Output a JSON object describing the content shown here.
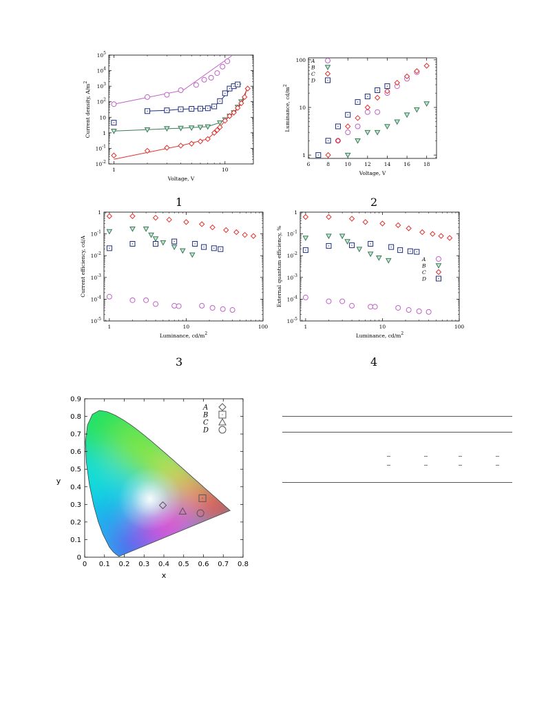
{
  "panel_numbers": [
    "1",
    "2",
    "3",
    "4"
  ],
  "chart_data": [
    {
      "id": "jv",
      "type": "scatter",
      "xlabel": "Voltage, V",
      "ylabel": "Current density, A/m",
      "ylabel_sup": "2",
      "xscale": "log",
      "yscale": "log",
      "xlim": [
        0.9,
        18
      ],
      "ylim": [
        0.01,
        100000
      ],
      "x_ticks": [
        {
          "v": 1,
          "label": "1"
        },
        {
          "v": 10,
          "label": "10"
        }
      ],
      "y_ticks": [
        {
          "v": 0.01,
          "base": "10",
          "exp": "-2"
        },
        {
          "v": 0.1,
          "base": "10",
          "exp": "-1"
        },
        {
          "v": 1,
          "base": "1",
          "exp": ""
        },
        {
          "v": 10,
          "base": "10",
          "exp": ""
        },
        {
          "v": 100,
          "base": "10",
          "exp": "2"
        },
        {
          "v": 1000,
          "base": "10",
          "exp": "3"
        },
        {
          "v": 10000,
          "base": "10",
          "exp": "4"
        },
        {
          "v": 100000,
          "base": "10",
          "exp": "5"
        }
      ],
      "series": [
        {
          "name": "A",
          "marker": "circle",
          "color": "#c060c8",
          "x": [
            1,
            2,
            3,
            4,
            5.5,
            6.5,
            7.5,
            8.5,
            9.5,
            10.5
          ],
          "y": [
            70,
            200,
            280,
            550,
            1200,
            2600,
            3500,
            7000,
            18000,
            40000
          ],
          "fit_x": [
            1,
            4.2,
            11.5
          ],
          "fit_y": [
            70,
            550,
            90000
          ]
        },
        {
          "name": "D",
          "marker": "square",
          "color": "#1c2a7c",
          "x": [
            1,
            2,
            3,
            4,
            5,
            6,
            7,
            8,
            9,
            10,
            11,
            12,
            13
          ],
          "y": [
            4.5,
            25,
            28,
            33,
            35,
            36,
            38,
            50,
            110,
            350,
            700,
            1000,
            1300
          ],
          "fit_x": [
            2,
            3,
            4,
            5,
            6,
            7,
            8,
            9,
            10,
            11,
            12,
            13,
            14
          ],
          "fit_y": [
            25,
            28,
            33,
            35,
            36,
            38,
            50,
            110,
            250,
            600,
            900,
            1200,
            1400
          ]
        },
        {
          "name": "B",
          "marker": "tri-down",
          "color": "#3a7a58",
          "x": [
            1,
            2,
            3,
            4,
            5,
            6,
            7,
            9,
            10,
            11,
            12,
            13,
            14
          ],
          "y": [
            1.3,
            1.6,
            1.9,
            2,
            2.1,
            2.3,
            2.5,
            4.5,
            7,
            12,
            20,
            45,
            100
          ],
          "fit_x": [
            1,
            2,
            4,
            7,
            8,
            9,
            10,
            11,
            12,
            13,
            14,
            16
          ],
          "fit_y": [
            1.3,
            1.6,
            2,
            2.5,
            3.5,
            4.5,
            7,
            12,
            20,
            45,
            100,
            800
          ]
        },
        {
          "name": "C",
          "marker": "diamond",
          "color": "#e0302c",
          "x": [
            1,
            2,
            3,
            4,
            5,
            6,
            7,
            8,
            8.5,
            9,
            10,
            11,
            12,
            13,
            14,
            15,
            16
          ],
          "y": [
            0.035,
            0.07,
            0.11,
            0.15,
            0.2,
            0.28,
            0.4,
            1,
            1.5,
            2.3,
            6,
            12,
            20,
            40,
            80,
            200,
            700
          ],
          "fit_x": [
            1,
            4,
            7,
            8,
            9,
            10,
            11,
            12,
            13,
            14,
            15,
            16
          ],
          "fit_y": [
            0.02,
            0.15,
            0.4,
            1,
            2.3,
            6,
            12,
            20,
            40,
            80,
            200,
            1000
          ]
        }
      ]
    },
    {
      "id": "lv",
      "type": "scatter",
      "xlabel": "Voltage, V",
      "ylabel": "Luminance, cd/m",
      "ylabel_sup": "2",
      "xscale": "linear",
      "yscale": "log",
      "xlim": [
        6,
        19
      ],
      "ylim": [
        0.85,
        110
      ],
      "x_ticks": [
        {
          "v": 6,
          "label": "6"
        },
        {
          "v": 8,
          "label": "8"
        },
        {
          "v": 10,
          "label": "10"
        },
        {
          "v": 12,
          "label": "12"
        },
        {
          "v": 14,
          "label": "14"
        },
        {
          "v": 16,
          "label": "16"
        },
        {
          "v": 18,
          "label": "18"
        }
      ],
      "y_ticks": [
        {
          "v": 1,
          "label": "1"
        },
        {
          "v": 10,
          "label": "10"
        },
        {
          "v": 100,
          "label": "100"
        }
      ],
      "legend": [
        "A",
        "B",
        "C",
        "D"
      ],
      "series": [
        {
          "name": "A",
          "marker": "circle",
          "color": "#c060c8",
          "x": [
            9,
            10,
            11,
            12,
            13,
            14,
            15,
            16,
            17
          ],
          "y": [
            2,
            3,
            4,
            8,
            8,
            20,
            28,
            40,
            55
          ]
        },
        {
          "name": "B",
          "marker": "tri-down",
          "color": "#3a7a58",
          "x": [
            10,
            11,
            12,
            13,
            14,
            15,
            16,
            17,
            18
          ],
          "y": [
            1,
            2,
            3,
            3,
            4,
            5,
            7,
            9,
            12
          ]
        },
        {
          "name": "C",
          "marker": "diamond",
          "color": "#e0302c",
          "x": [
            8,
            9,
            10,
            11,
            12,
            13,
            14,
            15,
            16,
            17,
            18
          ],
          "y": [
            1,
            2,
            4,
            6,
            10,
            16,
            22,
            33,
            45,
            58,
            75
          ]
        },
        {
          "name": "D",
          "marker": "square",
          "color": "#1c2a7c",
          "x": [
            7,
            8,
            9,
            10,
            11,
            12,
            13,
            14
          ],
          "y": [
            1,
            2,
            4,
            7,
            13,
            17,
            23,
            28
          ]
        }
      ]
    },
    {
      "id": "ce",
      "type": "scatter",
      "xlabel": "Luminance, cd/m",
      "xlabel_sup": "2",
      "ylabel": "Current efficiency, cd/A",
      "xscale": "log",
      "yscale": "log",
      "xlim": [
        0.85,
        100
      ],
      "ylim": [
        1e-05,
        1
      ],
      "x_ticks": [
        {
          "v": 1,
          "label": "1"
        },
        {
          "v": 10,
          "label": "10"
        },
        {
          "v": 100,
          "label": "100"
        }
      ],
      "y_ticks": [
        {
          "v": 1e-05,
          "base": "10",
          "exp": "-5"
        },
        {
          "v": 0.0001,
          "base": "10",
          "exp": "-4"
        },
        {
          "v": 0.001,
          "base": "10",
          "exp": "-3"
        },
        {
          "v": 0.01,
          "base": "10",
          "exp": "-2"
        },
        {
          "v": 0.1,
          "base": "10",
          "exp": "-1"
        },
        {
          "v": 1,
          "base": "1",
          "exp": ""
        }
      ],
      "series": [
        {
          "name": "A",
          "marker": "circle",
          "color": "#c060c8",
          "x": [
            1,
            2,
            3,
            4,
            7,
            8,
            16,
            22,
            30,
            40
          ],
          "y": [
            0.00013,
            9e-05,
            9e-05,
            6e-05,
            5e-05,
            4.8e-05,
            5e-05,
            4e-05,
            3.5e-05,
            3.2e-05
          ]
        },
        {
          "name": "B",
          "marker": "tri-down",
          "color": "#3a7a58",
          "x": [
            1,
            2,
            3,
            3.5,
            4,
            5,
            7,
            9,
            12
          ],
          "y": [
            0.13,
            0.17,
            0.17,
            0.09,
            0.06,
            0.04,
            0.025,
            0.017,
            0.011
          ]
        },
        {
          "name": "C",
          "marker": "diamond",
          "color": "#e0302c",
          "x": [
            1,
            2,
            4,
            6,
            10,
            16,
            22,
            33,
            45,
            58,
            75
          ],
          "y": [
            0.65,
            0.65,
            0.55,
            0.45,
            0.35,
            0.28,
            0.2,
            0.15,
            0.12,
            0.09,
            0.08
          ]
        },
        {
          "name": "D",
          "marker": "square",
          "color": "#1c2a7c",
          "x": [
            1,
            2,
            4,
            7,
            13,
            17,
            23,
            28
          ],
          "y": [
            0.022,
            0.035,
            0.035,
            0.045,
            0.035,
            0.025,
            0.022,
            0.02
          ]
        }
      ]
    },
    {
      "id": "eqe",
      "type": "scatter",
      "xlabel": "Luminance, cd/m",
      "xlabel_sup": "2",
      "ylabel": "External quantum efficiency, %",
      "xscale": "log",
      "yscale": "log",
      "xlim": [
        0.85,
        100
      ],
      "ylim": [
        1e-05,
        1
      ],
      "x_ticks": [
        {
          "v": 1,
          "label": "1"
        },
        {
          "v": 10,
          "label": "10"
        },
        {
          "v": 100,
          "label": "100"
        }
      ],
      "y_ticks": [
        {
          "v": 1e-05,
          "base": "10",
          "exp": "-5"
        },
        {
          "v": 0.0001,
          "base": "10",
          "exp": "-4"
        },
        {
          "v": 0.001,
          "base": "10",
          "exp": "-3"
        },
        {
          "v": 0.01,
          "base": "10",
          "exp": "-2"
        },
        {
          "v": 0.1,
          "base": "10",
          "exp": "-1"
        },
        {
          "v": 1,
          "base": "1",
          "exp": ""
        }
      ],
      "legend": [
        "A",
        "B",
        "C",
        "D"
      ],
      "series": [
        {
          "name": "A",
          "marker": "circle",
          "color": "#c060c8",
          "x": [
            1,
            2,
            3,
            4,
            7,
            8,
            16,
            22,
            30,
            40
          ],
          "y": [
            0.00012,
            8e-05,
            8e-05,
            5e-05,
            4.5e-05,
            4.5e-05,
            4e-05,
            3.2e-05,
            2.8e-05,
            2.6e-05
          ]
        },
        {
          "name": "B",
          "marker": "tri-down",
          "color": "#3a7a58",
          "x": [
            1,
            2,
            3,
            3.5,
            4,
            5,
            7,
            9,
            12
          ],
          "y": [
            0.065,
            0.08,
            0.08,
            0.045,
            0.03,
            0.02,
            0.012,
            0.008,
            0.006
          ]
        },
        {
          "name": "C",
          "marker": "diamond",
          "color": "#e0302c",
          "x": [
            1,
            2,
            4,
            6,
            10,
            16,
            22,
            33,
            45,
            58,
            75
          ],
          "y": [
            0.6,
            0.6,
            0.5,
            0.35,
            0.3,
            0.25,
            0.18,
            0.12,
            0.1,
            0.08,
            0.065
          ]
        },
        {
          "name": "D",
          "marker": "square",
          "color": "#1c2a7c",
          "x": [
            1,
            2,
            4,
            7,
            13,
            17,
            23,
            28
          ],
          "y": [
            0.018,
            0.028,
            0.03,
            0.035,
            0.025,
            0.018,
            0.016,
            0.015
          ]
        }
      ]
    },
    {
      "id": "cie",
      "type": "scatter",
      "xlabel": "x",
      "ylabel": "y",
      "xlim": [
        0,
        0.8
      ],
      "ylim": [
        0,
        0.9
      ],
      "x_ticks": [
        "0",
        "0.1",
        "0.2",
        "0.3",
        "0.4",
        "0.5",
        "0.6",
        "0.7",
        "0.8"
      ],
      "y_ticks": [
        "0",
        "0.1",
        "0.2",
        "0.3",
        "0.4",
        "0.5",
        "0.6",
        "0.7",
        "0.8",
        "0.9"
      ],
      "legend": [
        "A",
        "B",
        "C",
        "D"
      ],
      "series": [
        {
          "name": "A",
          "marker": "diamond",
          "x": [
            0.395
          ],
          "y": [
            0.295
          ]
        },
        {
          "name": "B",
          "marker": "square",
          "x": [
            0.595
          ],
          "y": [
            0.335
          ]
        },
        {
          "name": "C",
          "marker": "triangle",
          "x": [
            0.495
          ],
          "y": [
            0.26
          ]
        },
        {
          "name": "D",
          "marker": "circle",
          "x": [
            0.585
          ],
          "y": [
            0.25
          ]
        }
      ]
    }
  ]
}
